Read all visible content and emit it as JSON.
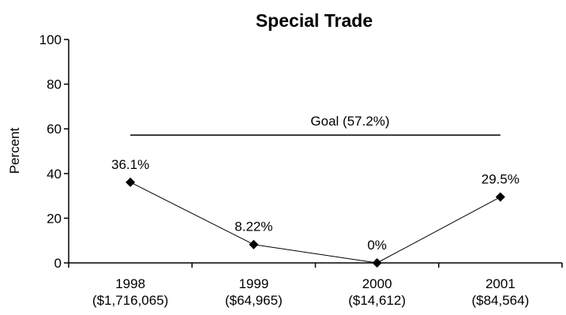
{
  "chart_data": {
    "type": "line",
    "title": "Special Trade",
    "xlabel": "",
    "ylabel": "Percent",
    "ylim": [
      0,
      100
    ],
    "yticks": [
      0,
      20,
      40,
      60,
      80,
      100
    ],
    "categories": [
      "1998",
      "1999",
      "2000",
      "2001"
    ],
    "category_subtitles": [
      "($1,716,065)",
      "($64,965)",
      "($14,612)",
      "($84,564)"
    ],
    "series": [
      {
        "values": [
          36.1,
          8.22,
          0,
          29.5
        ],
        "labels": [
          "36.1%",
          "8.22%",
          "0%",
          "29.5%"
        ]
      }
    ],
    "goal": {
      "value": 57.2,
      "label": "Goal (57.2%)"
    },
    "grid": false,
    "legend": false
  }
}
